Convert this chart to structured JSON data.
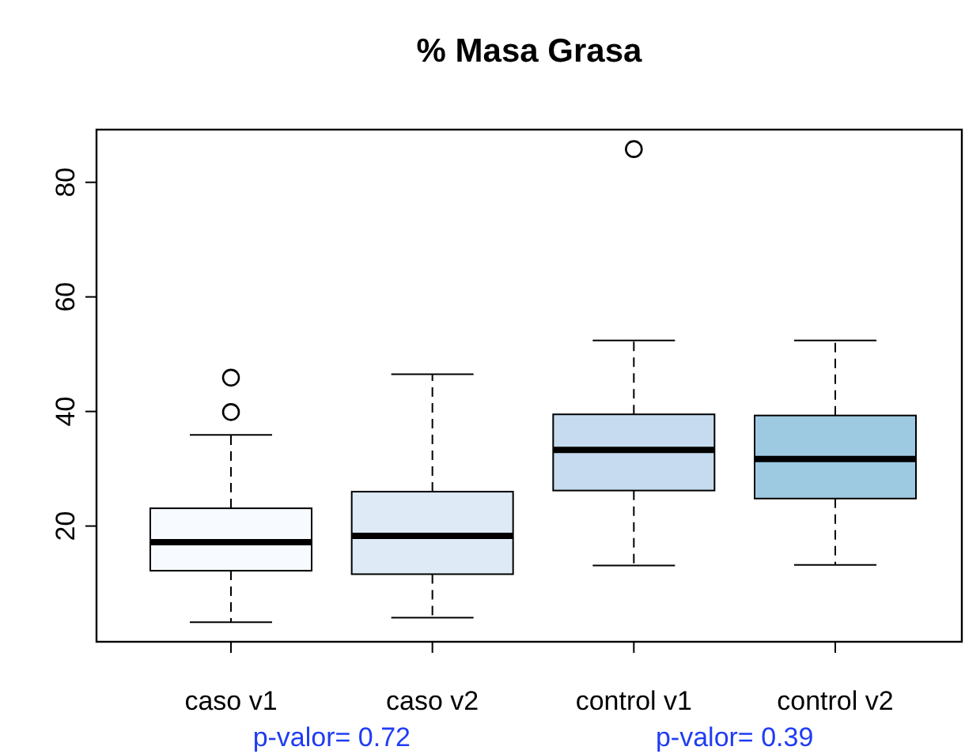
{
  "chart_data": {
    "type": "box",
    "title": "% Masa Grasa",
    "categories": [
      "caso v1",
      "caso v2",
      "control v1",
      "control v2"
    ],
    "colors": [
      "#f7fbff",
      "#deebf7",
      "#c6dbef",
      "#9ecae1"
    ],
    "boxes": [
      {
        "low": 3.2,
        "q1": 12.2,
        "median": 17.2,
        "q3": 23.1,
        "high": 35.9,
        "outliers": [
          39.9,
          45.9
        ]
      },
      {
        "low": 4.0,
        "q1": 11.6,
        "median": 18.3,
        "q3": 26.0,
        "high": 46.5
      },
      {
        "low": 13.1,
        "q1": 26.2,
        "median": 33.3,
        "q3": 39.5,
        "high": 52.4,
        "outliers": [
          85.8
        ]
      },
      {
        "low": 13.2,
        "q1": 24.8,
        "median": 31.7,
        "q3": 39.3,
        "high": 52.4
      }
    ],
    "ylim": [
      -0.2,
      89.2
    ],
    "yticks": [
      20,
      40,
      60,
      80
    ],
    "grid": false,
    "annotations": [
      "p-valor= 0.72",
      "p-valor= 0.39"
    ]
  }
}
